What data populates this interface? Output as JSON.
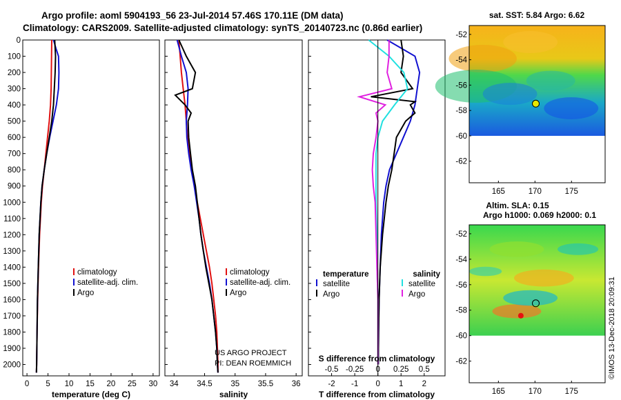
{
  "header": {
    "line1": "Argo profile: aoml 5904193_56 23-Jul-2014 57.46S 170.11E (DM data)",
    "line2": "Climatology: CARS2009. Satellite-adjusted climatology: synTS_20140723.nc (0.86d earlier)"
  },
  "watermark": "©IMOS 13-Dec-2018 20:09:31",
  "credit": {
    "line1": "US ARGO PROJECT",
    "line2": "PI: DEAN ROEMMICH"
  },
  "colors": {
    "climatology": "#e01010",
    "satellite": "#1010d0",
    "argo": "#000000",
    "satellite_salinity": "#20e0e0",
    "argo_salinity": "#e020e0"
  },
  "chart_data": [
    {
      "type": "line",
      "xlabel": "temperature (deg C)",
      "ylabel": "",
      "xlim": [
        -1,
        31.5
      ],
      "ylim": [
        2070,
        0
      ],
      "xticks": [
        0,
        5,
        10,
        15,
        20,
        25,
        30
      ],
      "yticks": [
        0,
        100,
        200,
        300,
        400,
        500,
        600,
        700,
        800,
        900,
        1000,
        1100,
        1200,
        1300,
        1400,
        1500,
        1600,
        1700,
        1800,
        1900,
        2000
      ],
      "ytick_labels": [
        "0",
        "100",
        "200",
        "300",
        "400",
        "500",
        "600",
        "700",
        "800",
        "900",
        "1000",
        "1100",
        "1200",
        "1300",
        "1400",
        "1500",
        "1600",
        "1700",
        "1800",
        "1900",
        "2000"
      ],
      "legend": [
        "climatology",
        "satellite-adj. clim.",
        "Argo"
      ],
      "series": [
        {
          "name": "climatology",
          "color": "#e01010",
          "depth": [
            0,
            100,
            200,
            300,
            400,
            500,
            600,
            700,
            800,
            900,
            1000,
            1200,
            1400,
            1600,
            1800,
            2000,
            2050
          ],
          "values": [
            5.9,
            5.85,
            5.8,
            5.75,
            5.6,
            5.3,
            4.9,
            4.5,
            4.1,
            3.7,
            3.4,
            3.0,
            2.75,
            2.55,
            2.4,
            2.3,
            2.25
          ]
        },
        {
          "name": "satellite-adj. clim.",
          "color": "#1010d0",
          "depth": [
            0,
            60,
            100,
            200,
            300,
            400,
            500,
            600,
            700,
            800,
            900,
            1000,
            1200,
            1400,
            1600,
            1800,
            2000,
            2050
          ],
          "values": [
            6.3,
            7.0,
            7.5,
            7.6,
            7.5,
            7.0,
            6.2,
            5.4,
            4.7,
            4.1,
            3.6,
            3.3,
            2.9,
            2.7,
            2.5,
            2.4,
            2.3,
            2.25
          ]
        },
        {
          "name": "Argo",
          "color": "#000000",
          "depth": [
            0,
            100,
            200,
            300,
            400,
            500,
            600,
            700,
            800,
            900,
            1000,
            1200,
            1400,
            1600,
            1800,
            2000,
            2050
          ],
          "values": [
            6.6,
            6.8,
            6.7,
            6.5,
            6.3,
            5.9,
            5.3,
            4.7,
            4.1,
            3.6,
            3.3,
            2.9,
            2.7,
            2.5,
            2.4,
            2.3,
            2.25
          ]
        }
      ]
    },
    {
      "type": "line",
      "xlabel": "salinity",
      "ylabel": "",
      "xlim": [
        33.85,
        36.1
      ],
      "ylim": [
        2070,
        0
      ],
      "xticks": [
        34,
        34.5,
        35,
        35.5,
        36
      ],
      "xtick_labels": [
        "34",
        "34.5",
        "35",
        "35.5",
        "36"
      ],
      "legend": [
        "climatology",
        "satellite-adj. clim.",
        "Argo"
      ],
      "series": [
        {
          "name": "climatology",
          "color": "#e01010",
          "depth": [
            0,
            100,
            200,
            300,
            400,
            500,
            600,
            700,
            800,
            900,
            1000,
            1100,
            1200,
            1300,
            1400,
            1500,
            1600,
            1700,
            1800,
            1900,
            2000,
            2050
          ],
          "values": [
            34.08,
            34.1,
            34.12,
            34.15,
            34.18,
            34.2,
            34.22,
            34.25,
            34.29,
            34.33,
            34.38,
            34.43,
            34.48,
            34.53,
            34.58,
            34.62,
            34.65,
            34.68,
            34.7,
            34.71,
            34.72,
            34.72
          ]
        },
        {
          "name": "satellite-adj. clim.",
          "color": "#1010d0",
          "depth": [
            0,
            100,
            200,
            300,
            400,
            500,
            600,
            700,
            800,
            900,
            1000,
            1100,
            1200,
            1300,
            1400,
            1500,
            1600,
            1700,
            1800,
            1900,
            2000,
            2050
          ],
          "values": [
            34.05,
            34.12,
            34.2,
            34.23,
            34.22,
            34.2,
            34.21,
            34.24,
            34.28,
            34.33,
            34.37,
            34.41,
            34.44,
            34.48,
            34.53,
            34.58,
            34.62,
            34.65,
            34.68,
            34.7,
            34.71,
            34.72
          ]
        },
        {
          "name": "Argo",
          "color": "#000000",
          "depth": [
            0,
            100,
            200,
            300,
            340,
            400,
            450,
            500,
            600,
            700,
            800,
            900,
            1000,
            1100,
            1200,
            1300,
            1400,
            1500,
            1600,
            1700,
            1800,
            1900,
            2000,
            2050
          ],
          "values": [
            34.08,
            34.2,
            34.35,
            34.3,
            34.02,
            34.18,
            34.28,
            34.23,
            34.24,
            34.27,
            34.3,
            34.35,
            34.38,
            34.41,
            34.44,
            34.48,
            34.52,
            34.57,
            34.62,
            34.65,
            34.68,
            34.7,
            34.71,
            34.72
          ]
        }
      ]
    },
    {
      "type": "line",
      "xlabel": "T difference from climatology",
      "ylabel": "",
      "xlim": [
        -3,
        2.9
      ],
      "ylim": [
        2070,
        0
      ],
      "xticks": [
        -2,
        -1,
        0,
        1,
        2
      ],
      "xtick_labels": [
        "-2",
        "-1",
        "0",
        "1",
        "2"
      ],
      "secondary_axis_title": "S difference from climatology",
      "secondary_xticks": [
        -0.5,
        -0.25,
        0,
        0.25,
        0.5
      ],
      "secondary_xtick_labels": [
        "-0.5",
        "-0.25",
        "0",
        "0.25",
        "0.5"
      ],
      "legend_temperature": [
        "temperature",
        "satellite",
        "Argo"
      ],
      "legend_salinity": [
        "salinity",
        "satellite",
        "Argo"
      ],
      "series": [
        {
          "name": "satellite",
          "group": "temperature",
          "color": "#1010d0",
          "depth": [
            0,
            100,
            200,
            300,
            400,
            500,
            600,
            700,
            800,
            900,
            1000,
            1200,
            1400,
            1600,
            1800,
            2000
          ],
          "values": [
            0.4,
            1.6,
            1.8,
            1.7,
            1.6,
            1.4,
            1.1,
            0.8,
            0.5,
            0.35,
            0.25,
            0.15,
            0.1,
            0.05,
            0.03,
            0.02
          ]
        },
        {
          "name": "Argo",
          "group": "temperature",
          "color": "#000000",
          "depth": [
            0,
            100,
            200,
            300,
            350,
            380,
            400,
            450,
            500,
            600,
            700,
            800,
            900,
            1000,
            1200,
            1400,
            1600,
            1800,
            2000
          ],
          "values": [
            1.0,
            1.1,
            1.0,
            1.5,
            -0.3,
            1.6,
            1.4,
            1.6,
            1.2,
            0.8,
            0.7,
            0.6,
            0.45,
            0.35,
            0.2,
            0.1,
            0.05,
            0.03,
            0.02
          ]
        },
        {
          "name": "satellite",
          "group": "salinity",
          "color": "#20e0e0",
          "depth": [
            0,
            100,
            200,
            300,
            400,
            500,
            600,
            700,
            800,
            900,
            1000,
            1200,
            1400,
            1600,
            1800,
            2000
          ],
          "values": [
            -0.1,
            0.12,
            0.28,
            0.32,
            0.18,
            0.05,
            0.0,
            -0.02,
            -0.02,
            -0.02,
            -0.02,
            -0.01,
            -0.01,
            0.0,
            0.0,
            0.0
          ]
        },
        {
          "name": "Argo",
          "group": "salinity",
          "color": "#e020e0",
          "depth": [
            0,
            100,
            200,
            300,
            350,
            400,
            450,
            500,
            600,
            700,
            800,
            900,
            1000,
            1200,
            1400,
            1600,
            1800,
            2000
          ],
          "values": [
            0.12,
            0.12,
            0.1,
            0.15,
            -0.2,
            0.08,
            -0.02,
            0.0,
            -0.02,
            -0.05,
            -0.06,
            -0.05,
            -0.03,
            -0.02,
            -0.01,
            0.0,
            0.0,
            0.0
          ]
        }
      ]
    },
    {
      "type": "heatmap",
      "title": "sat. SST: 5.84 Argo: 6.62",
      "xticks": [
        165,
        170,
        175
      ],
      "yticks": [
        -52,
        -54,
        -56,
        -58,
        -60,
        -62
      ],
      "profile_marker": {
        "lon": 170.11,
        "lat": -57.46
      }
    },
    {
      "type": "heatmap",
      "title_line1": "Altim. SLA: 0.15",
      "title_line2": "Argo h1000: 0.069 h2000: 0.1",
      "xticks": [
        165,
        170,
        175
      ],
      "yticks": [
        -52,
        -54,
        -56,
        -58,
        -60,
        -62
      ],
      "profile_marker": {
        "lon": 170.11,
        "lat": -57.46
      }
    }
  ]
}
